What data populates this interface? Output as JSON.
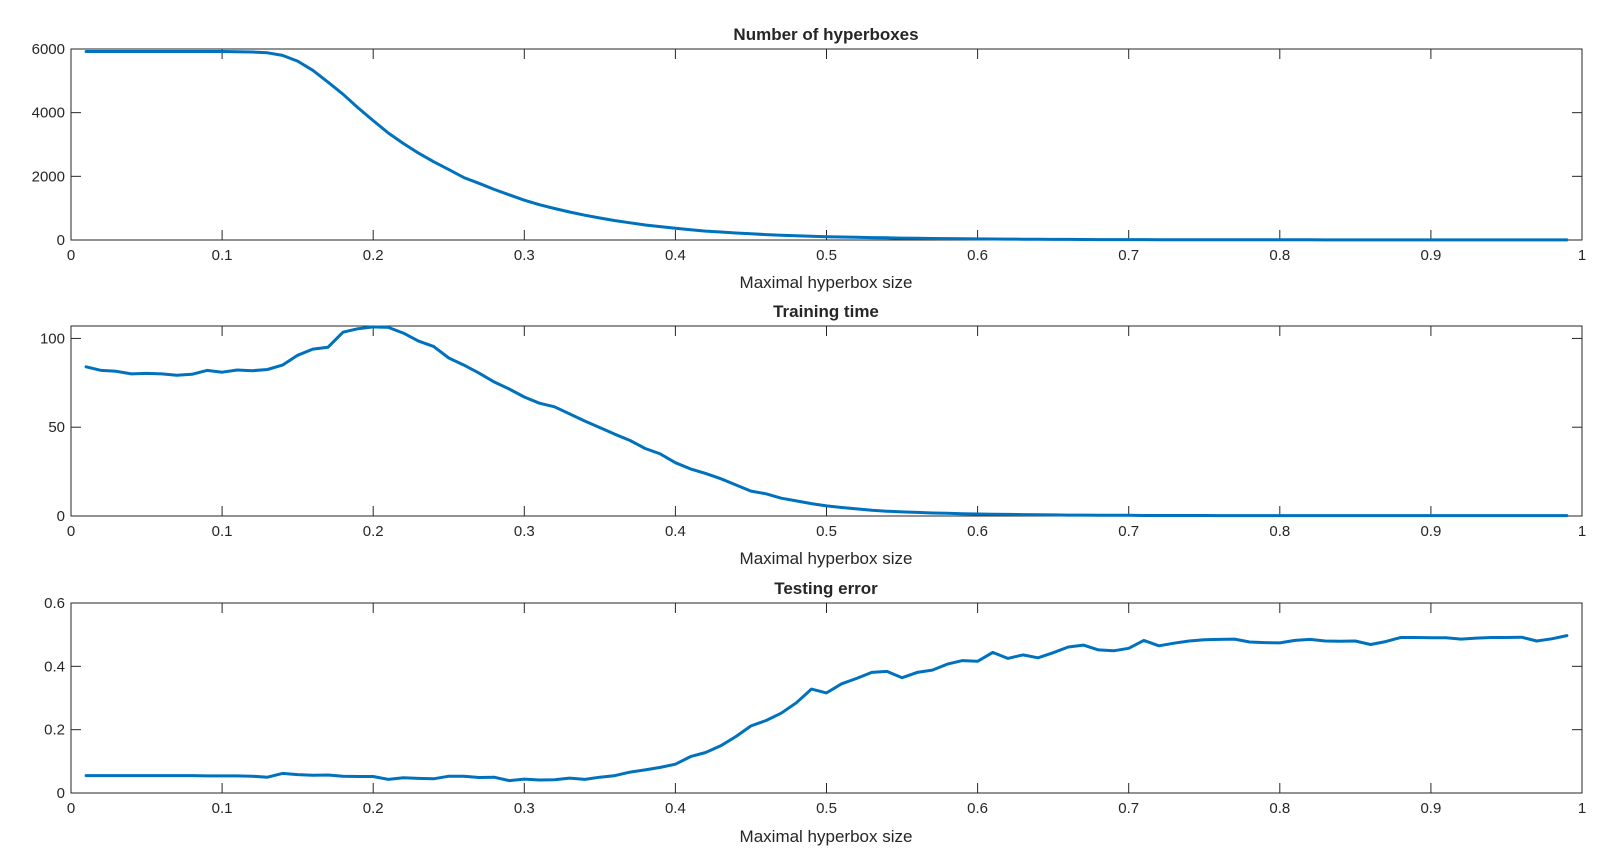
{
  "colors": {
    "line": "#0072BD",
    "axes": "#262626",
    "background": "#ffffff"
  },
  "chart_data": [
    {
      "type": "line",
      "title": "Number of hyperboxes",
      "xlabel": "Maximal hyperbox size",
      "ylabel": "",
      "xlim": [
        0,
        1
      ],
      "ylim": [
        0,
        6000
      ],
      "xticks": [
        0,
        0.1,
        0.2,
        0.3,
        0.4,
        0.5,
        0.6,
        0.7,
        0.8,
        0.9,
        1
      ],
      "xtick_labels": [
        "0",
        "0.1",
        "0.2",
        "0.3",
        "0.4",
        "0.5",
        "0.6",
        "0.7",
        "0.8",
        "0.9",
        "1"
      ],
      "yticks": [
        0,
        2000,
        4000,
        6000
      ],
      "ytick_labels": [
        "0",
        "2000",
        "4000",
        "6000"
      ],
      "grid": false,
      "series": [
        {
          "x": [
            0.01,
            0.02,
            0.03,
            0.04,
            0.05,
            0.06,
            0.07,
            0.08,
            0.09,
            0.1,
            0.11,
            0.12,
            0.13,
            0.14,
            0.15,
            0.16,
            0.17,
            0.18,
            0.19,
            0.2,
            0.21,
            0.22,
            0.23,
            0.24,
            0.25,
            0.26,
            0.27,
            0.28,
            0.29,
            0.3,
            0.31,
            0.32,
            0.33,
            0.34,
            0.35,
            0.36,
            0.37,
            0.38,
            0.39,
            0.4,
            0.41,
            0.42,
            0.43,
            0.44,
            0.45,
            0.46,
            0.47,
            0.48,
            0.49,
            0.5,
            0.51,
            0.52,
            0.53,
            0.54,
            0.55,
            0.56,
            0.57,
            0.58,
            0.59,
            0.6,
            0.61,
            0.62,
            0.63,
            0.64,
            0.65,
            0.66,
            0.67,
            0.68,
            0.69,
            0.7,
            0.71,
            0.72,
            0.73,
            0.74,
            0.75,
            0.76,
            0.77,
            0.78,
            0.79,
            0.8,
            0.81,
            0.82,
            0.83,
            0.84,
            0.85,
            0.86,
            0.87,
            0.88,
            0.89,
            0.9,
            0.91,
            0.92,
            0.93,
            0.94,
            0.95,
            0.96,
            0.97,
            0.98,
            0.99
          ],
          "values": [
            5920,
            5920,
            5920,
            5920,
            5920,
            5920,
            5920,
            5920,
            5920,
            5920,
            5915,
            5905,
            5880,
            5800,
            5620,
            5330,
            4960,
            4580,
            4150,
            3750,
            3360,
            3030,
            2730,
            2460,
            2210,
            1960,
            1780,
            1590,
            1420,
            1250,
            1110,
            990,
            880,
            780,
            690,
            610,
            540,
            470,
            420,
            370,
            320,
            280,
            250,
            220,
            195,
            170,
            150,
            135,
            120,
            105,
            95,
            85,
            75,
            68,
            60,
            54,
            48,
            43,
            39,
            35,
            31,
            28,
            25,
            22,
            20,
            18,
            16,
            14,
            13,
            12,
            11,
            10,
            9,
            8,
            8,
            7,
            7,
            6,
            6,
            5,
            5,
            5,
            4,
            4,
            4,
            4,
            3,
            3,
            3,
            3,
            3,
            3,
            2,
            2,
            2,
            2,
            2,
            2,
            2
          ]
        }
      ]
    },
    {
      "type": "line",
      "title": "Training time",
      "xlabel": "Maximal hyperbox size",
      "ylabel": "",
      "xlim": [
        0,
        1
      ],
      "ylim": [
        0,
        107
      ],
      "xticks": [
        0,
        0.1,
        0.2,
        0.3,
        0.4,
        0.5,
        0.6,
        0.7,
        0.8,
        0.9,
        1
      ],
      "xtick_labels": [
        "0",
        "0.1",
        "0.2",
        "0.3",
        "0.4",
        "0.5",
        "0.6",
        "0.7",
        "0.8",
        "0.9",
        "1"
      ],
      "yticks": [
        0,
        50,
        100
      ],
      "ytick_labels": [
        "0",
        "50",
        "100"
      ],
      "grid": false,
      "series": [
        {
          "x": [
            0.01,
            0.02,
            0.03,
            0.04,
            0.05,
            0.06,
            0.07,
            0.08,
            0.09,
            0.1,
            0.11,
            0.12,
            0.13,
            0.14,
            0.15,
            0.16,
            0.17,
            0.18,
            0.19,
            0.2,
            0.21,
            0.22,
            0.23,
            0.24,
            0.25,
            0.26,
            0.27,
            0.28,
            0.29,
            0.3,
            0.31,
            0.32,
            0.33,
            0.34,
            0.35,
            0.36,
            0.37,
            0.38,
            0.39,
            0.4,
            0.41,
            0.42,
            0.43,
            0.44,
            0.45,
            0.46,
            0.47,
            0.48,
            0.49,
            0.5,
            0.51,
            0.52,
            0.53,
            0.54,
            0.55,
            0.56,
            0.57,
            0.58,
            0.59,
            0.6,
            0.61,
            0.62,
            0.63,
            0.64,
            0.65,
            0.66,
            0.67,
            0.68,
            0.69,
            0.7,
            0.71,
            0.72,
            0.73,
            0.74,
            0.75,
            0.76,
            0.77,
            0.78,
            0.79,
            0.8,
            0.81,
            0.82,
            0.83,
            0.84,
            0.85,
            0.86,
            0.87,
            0.88,
            0.89,
            0.9,
            0.91,
            0.92,
            0.93,
            0.94,
            0.95,
            0.96,
            0.97,
            0.98,
            0.99
          ],
          "values": [
            84,
            82,
            81.5,
            80,
            80.3,
            80,
            79.3,
            79.8,
            82,
            81,
            82.2,
            81.8,
            82.5,
            85,
            90.5,
            94,
            95,
            103.5,
            105.5,
            106.5,
            106.2,
            103,
            98.5,
            95.5,
            89,
            85,
            80.5,
            75.5,
            71.5,
            67,
            63.5,
            61.5,
            57.5,
            53.5,
            49.8,
            46,
            42.5,
            38,
            35,
            30,
            26.5,
            24,
            21,
            17.5,
            14,
            12.5,
            10,
            8.5,
            7,
            5.7,
            4.8,
            4,
            3.2,
            2.7,
            2.3,
            2,
            1.7,
            1.5,
            1.3,
            1.1,
            1,
            0.9,
            0.8,
            0.7,
            0.6,
            0.5,
            0.5,
            0.4,
            0.4,
            0.4,
            0.3,
            0.3,
            0.3,
            0.3,
            0.3,
            0.2,
            0.2,
            0.2,
            0.2,
            0.2,
            0.2,
            0.2,
            0.2,
            0.2,
            0.2,
            0.2,
            0.2,
            0.2,
            0.2,
            0.2,
            0.2,
            0.2,
            0.2,
            0.2,
            0.2,
            0.2,
            0.2,
            0.2,
            0.2
          ]
        }
      ]
    },
    {
      "type": "line",
      "title": "Testing error",
      "xlabel": "Maximal hyperbox size",
      "ylabel": "",
      "xlim": [
        0,
        1
      ],
      "ylim": [
        0,
        0.6
      ],
      "xticks": [
        0,
        0.1,
        0.2,
        0.3,
        0.4,
        0.5,
        0.6,
        0.7,
        0.8,
        0.9,
        1
      ],
      "xtick_labels": [
        "0",
        "0.1",
        "0.2",
        "0.3",
        "0.4",
        "0.5",
        "0.6",
        "0.7",
        "0.8",
        "0.9",
        "1"
      ],
      "yticks": [
        0,
        0.2,
        0.4,
        0.6
      ],
      "ytick_labels": [
        "0",
        "0.2",
        "0.4",
        "0.6"
      ],
      "grid": false,
      "series": [
        {
          "x": [
            0.01,
            0.02,
            0.03,
            0.04,
            0.05,
            0.06,
            0.07,
            0.08,
            0.09,
            0.1,
            0.11,
            0.12,
            0.13,
            0.14,
            0.15,
            0.16,
            0.17,
            0.18,
            0.19,
            0.2,
            0.21,
            0.22,
            0.23,
            0.24,
            0.25,
            0.26,
            0.27,
            0.28,
            0.29,
            0.3,
            0.31,
            0.32,
            0.33,
            0.34,
            0.35,
            0.36,
            0.37,
            0.38,
            0.39,
            0.4,
            0.41,
            0.42,
            0.43,
            0.44,
            0.45,
            0.46,
            0.47,
            0.48,
            0.49,
            0.5,
            0.51,
            0.52,
            0.53,
            0.54,
            0.55,
            0.56,
            0.57,
            0.58,
            0.59,
            0.6,
            0.61,
            0.62,
            0.63,
            0.64,
            0.65,
            0.66,
            0.67,
            0.68,
            0.69,
            0.7,
            0.71,
            0.72,
            0.73,
            0.74,
            0.75,
            0.76,
            0.77,
            0.78,
            0.79,
            0.8,
            0.81,
            0.82,
            0.83,
            0.84,
            0.85,
            0.86,
            0.87,
            0.88,
            0.89,
            0.9,
            0.91,
            0.92,
            0.93,
            0.94,
            0.95,
            0.96,
            0.97,
            0.98,
            0.99
          ],
          "values": [
            0.055,
            0.055,
            0.055,
            0.055,
            0.055,
            0.055,
            0.055,
            0.055,
            0.054,
            0.054,
            0.054,
            0.053,
            0.05,
            0.062,
            0.058,
            0.056,
            0.057,
            0.053,
            0.052,
            0.052,
            0.043,
            0.048,
            0.046,
            0.045,
            0.053,
            0.053,
            0.049,
            0.05,
            0.039,
            0.044,
            0.041,
            0.042,
            0.047,
            0.043,
            0.05,
            0.055,
            0.066,
            0.073,
            0.081,
            0.091,
            0.115,
            0.128,
            0.149,
            0.178,
            0.212,
            0.229,
            0.252,
            0.285,
            0.328,
            0.316,
            0.345,
            0.362,
            0.381,
            0.384,
            0.364,
            0.381,
            0.388,
            0.407,
            0.418,
            0.416,
            0.444,
            0.425,
            0.436,
            0.427,
            0.443,
            0.461,
            0.467,
            0.452,
            0.449,
            0.457,
            0.482,
            0.465,
            0.473,
            0.48,
            0.484,
            0.485,
            0.486,
            0.477,
            0.475,
            0.474,
            0.482,
            0.485,
            0.48,
            0.479,
            0.48,
            0.469,
            0.478,
            0.491,
            0.491,
            0.49,
            0.49,
            0.486,
            0.489,
            0.491,
            0.491,
            0.492,
            0.48,
            0.487,
            0.497
          ]
        }
      ]
    }
  ]
}
